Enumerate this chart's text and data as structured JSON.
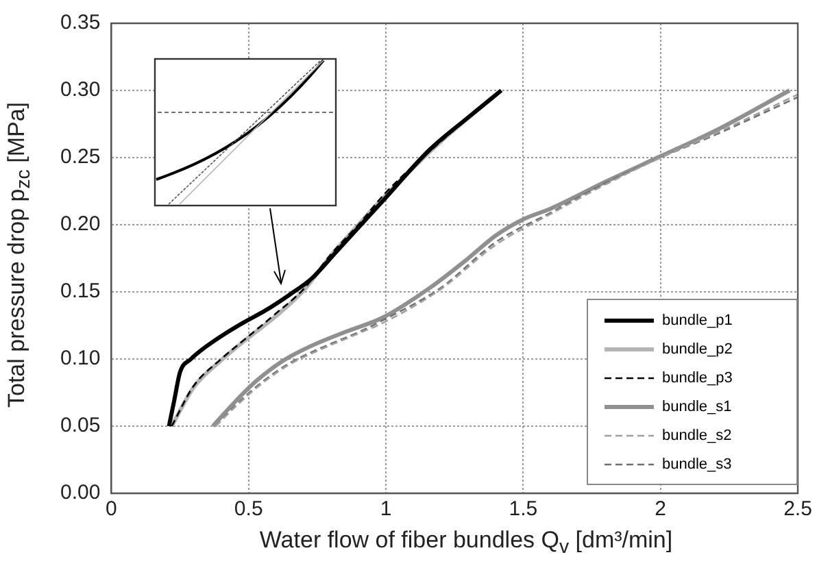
{
  "chart_data": {
    "type": "line",
    "xlabel": "Water flow of fiber bundles  Q$_{v}$  [dm³/min]",
    "ylabel": "Total pressure drop  p$_{zc}$  [MPa]",
    "xlim": [
      0,
      2.5
    ],
    "xticks": [
      0,
      0.5,
      1,
      1.5,
      2,
      2.5
    ],
    "ylim": [
      0,
      0.35
    ],
    "yticks": [
      {
        "value": 0,
        "label": "0.00"
      },
      {
        "value": 0.05,
        "label": "0.05"
      },
      {
        "value": 0.1,
        "label": "0.10"
      },
      {
        "value": 0.15,
        "label": "0.15"
      },
      {
        "value": 0.2,
        "label": "0.20"
      },
      {
        "value": 0.25,
        "label": "0.25"
      },
      {
        "value": 0.3,
        "label": "0.30"
      },
      {
        "value": 0.35,
        "label": "0.35"
      }
    ],
    "grid": true,
    "legend": "bottom right",
    "marker": "none",
    "series": [
      {
        "name": "bundle_p1",
        "color": "#000000",
        "line_style": "solid",
        "x": [
          0.21,
          0.23,
          0.25,
          0.29,
          0.33,
          0.4,
          0.48,
          0.56,
          0.65,
          0.73,
          0.82,
          0.99,
          1.16,
          1.3,
          1.42
        ],
        "values": [
          0.05,
          0.07,
          0.09,
          0.1,
          0.107,
          0.117,
          0.127,
          0.136,
          0.148,
          0.16,
          0.18,
          0.218,
          0.256,
          0.28,
          0.3
        ]
      },
      {
        "name": "bundle_p2",
        "color": "#b4b4b4",
        "line_style": "solid",
        "x": [
          0.22,
          0.3,
          0.4,
          0.5,
          0.6,
          0.7,
          0.8,
          0.9,
          1.0,
          1.2,
          1.42
        ],
        "values": [
          0.05,
          0.079,
          0.099,
          0.116,
          0.132,
          0.151,
          0.177,
          0.2,
          0.222,
          0.262,
          0.3
        ]
      },
      {
        "name": "bundle_p3",
        "color": "#000000",
        "line_style": "dashed",
        "x": [
          0.22,
          0.3,
          0.4,
          0.5,
          0.6,
          0.7,
          0.8,
          0.9,
          1.0,
          1.2,
          1.42
        ],
        "values": [
          0.05,
          0.08,
          0.1,
          0.117,
          0.134,
          0.152,
          0.178,
          0.2,
          0.224,
          0.262,
          0.3
        ]
      },
      {
        "name": "bundle_s1",
        "color": "#909090",
        "line_style": "solid",
        "x": [
          0.37,
          0.45,
          0.53,
          0.62,
          0.72,
          0.85,
          0.99,
          1.16,
          1.3,
          1.4,
          1.5,
          1.6,
          1.8,
          2.0,
          2.2,
          2.47
        ],
        "values": [
          0.05,
          0.068,
          0.084,
          0.098,
          0.109,
          0.12,
          0.131,
          0.153,
          0.175,
          0.192,
          0.204,
          0.212,
          0.232,
          0.251,
          0.27,
          0.3
        ]
      },
      {
        "name": "bundle_s2",
        "color": "#a0a0a0",
        "line_style": "dashed",
        "x": [
          0.38,
          0.46,
          0.55,
          0.65,
          0.75,
          0.9,
          1.0,
          1.2,
          1.4,
          1.6,
          1.8,
          2.0,
          2.2,
          2.5
        ],
        "values": [
          0.05,
          0.066,
          0.082,
          0.096,
          0.106,
          0.119,
          0.128,
          0.152,
          0.185,
          0.208,
          0.23,
          0.25,
          0.268,
          0.297
        ]
      },
      {
        "name": "bundle_s3",
        "color": "#707070",
        "line_style": "dashed",
        "x": [
          0.38,
          0.46,
          0.55,
          0.65,
          0.75,
          0.9,
          1.0,
          1.2,
          1.4,
          1.6,
          1.8,
          2.0,
          2.2,
          2.5
        ],
        "values": [
          0.05,
          0.067,
          0.083,
          0.097,
          0.107,
          0.12,
          0.13,
          0.153,
          0.187,
          0.209,
          0.231,
          0.25,
          0.267,
          0.295
        ]
      }
    ]
  }
}
